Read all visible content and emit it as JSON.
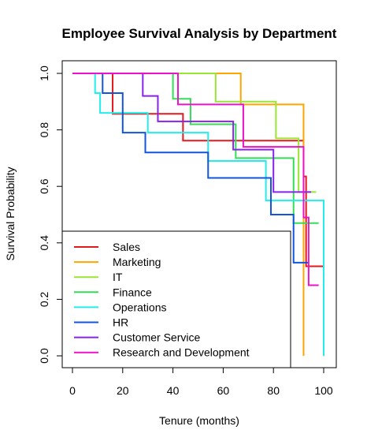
{
  "chart_data": {
    "type": "line",
    "step": true,
    "title": "Employee Survival Analysis by Department",
    "xlabel": "Tenure (months)",
    "ylabel": "Survival Probability",
    "xlim": [
      0,
      100
    ],
    "ylim": [
      0,
      1
    ],
    "xticks": [
      "0",
      "20",
      "40",
      "60",
      "80",
      "100"
    ],
    "yticks": [
      "0.0",
      "0.2",
      "0.4",
      "0.6",
      "0.8",
      "1.0"
    ],
    "grid": false,
    "legend_position": "bottom-left",
    "series": [
      {
        "name": "Sales",
        "color": "#e31a1c",
        "x": [
          0,
          15,
          16,
          43,
          44,
          68,
          92,
          93,
          100
        ],
        "y": [
          1.0,
          1.0,
          0.857,
          0.857,
          0.762,
          0.762,
          0.635,
          0.317,
          0.317
        ]
      },
      {
        "name": "Marketing",
        "color": "#ffa500",
        "x": [
          0,
          43,
          67,
          92
        ],
        "y": [
          1.0,
          1.0,
          0.89,
          0.0
        ]
      },
      {
        "name": "IT",
        "color": "#99e633",
        "x": [
          0,
          33,
          57,
          81,
          90,
          97
        ],
        "y": [
          1.0,
          1.0,
          0.9,
          0.77,
          0.58,
          0.58
        ]
      },
      {
        "name": "Finance",
        "color": "#33dd55",
        "x": [
          0,
          30,
          40,
          47,
          65,
          88,
          98
        ],
        "y": [
          1.0,
          1.0,
          0.91,
          0.82,
          0.7,
          0.47,
          0.47
        ]
      },
      {
        "name": "Operations",
        "color": "#22eeee",
        "x": [
          0,
          9,
          11,
          30,
          54,
          77,
          100
        ],
        "y": [
          1.0,
          0.93,
          0.86,
          0.79,
          0.69,
          0.55,
          0.0
        ]
      },
      {
        "name": "HR",
        "color": "#1155dd",
        "x": [
          0,
          12,
          20,
          29,
          54,
          79,
          88,
          94
        ],
        "y": [
          1.0,
          0.93,
          0.79,
          0.72,
          0.63,
          0.5,
          0.33,
          0.33
        ]
      },
      {
        "name": "Customer Service",
        "color": "#8822ee",
        "x": [
          0,
          28,
          34,
          64,
          80,
          95
        ],
        "y": [
          1.0,
          0.92,
          0.83,
          0.73,
          0.58,
          0.58
        ]
      },
      {
        "name": "Research and Development",
        "color": "#ee11cc",
        "x": [
          0,
          42,
          68,
          92,
          94,
          98
        ],
        "y": [
          1.0,
          0.89,
          0.74,
          0.49,
          0.25,
          0.25
        ]
      }
    ]
  }
}
